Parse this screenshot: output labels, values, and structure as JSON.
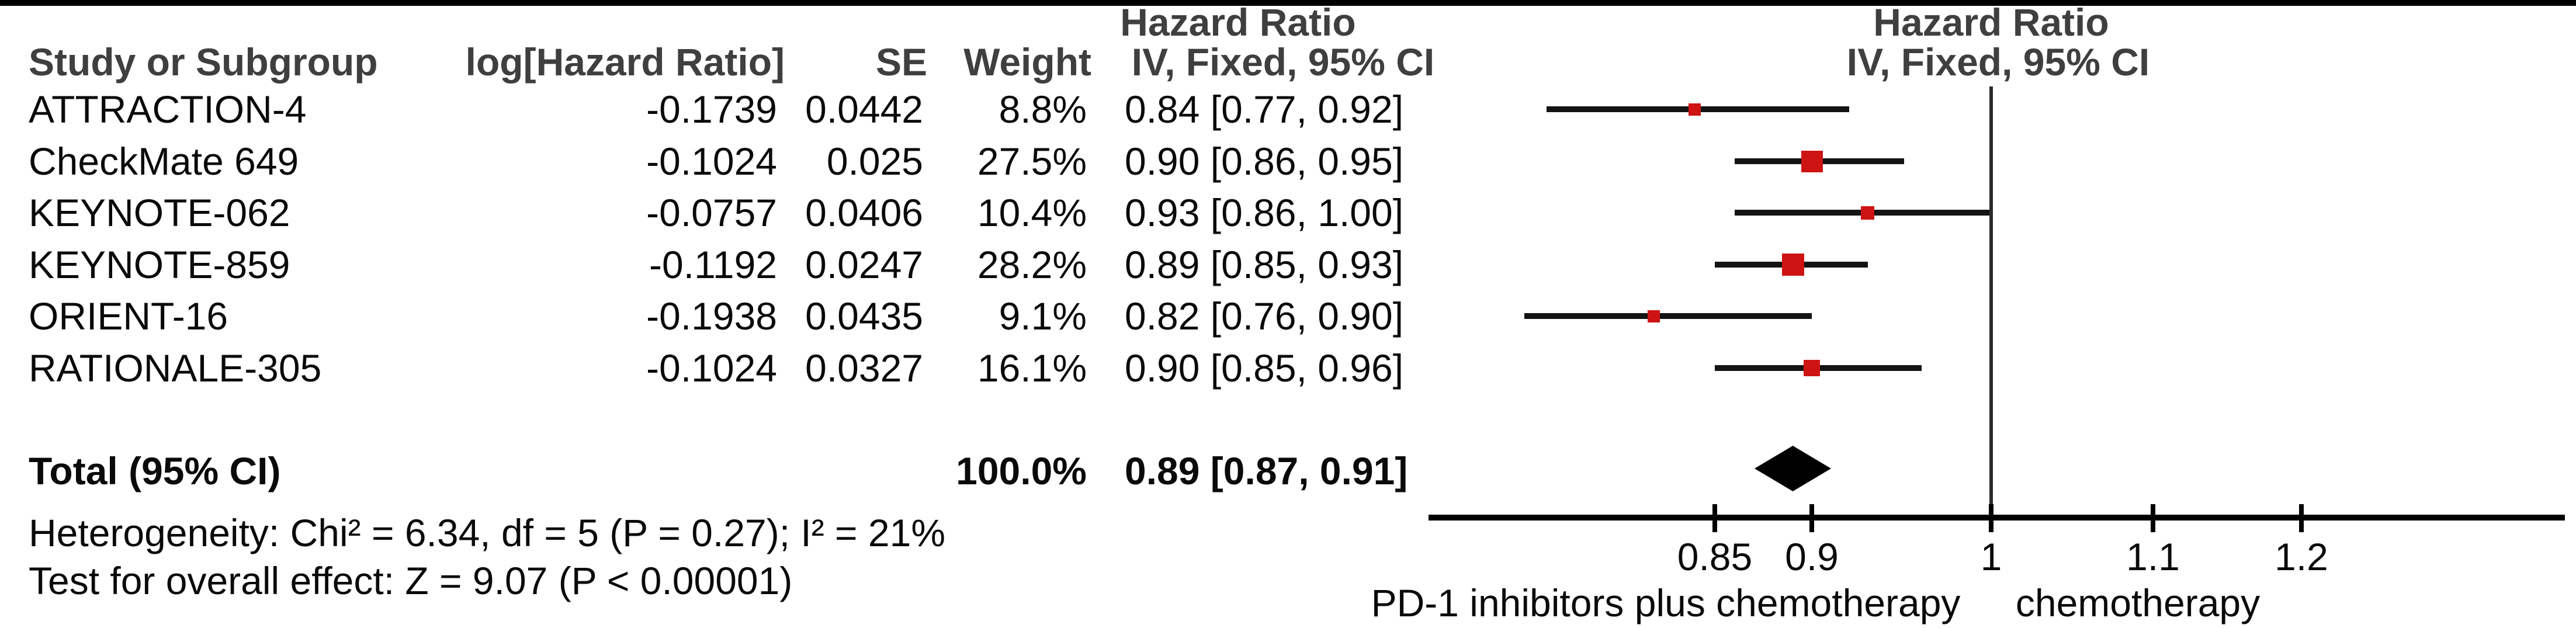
{
  "figure": {
    "headers": {
      "hazard_ratio_left": "Hazard Ratio",
      "hazard_ratio_right": "Hazard Ratio",
      "study": "Study or Subgroup",
      "log_hr": "log[Hazard Ratio]",
      "se": "SE",
      "weight": "Weight",
      "ci_method_left": "IV, Fixed, 95% CI",
      "ci_method_right": "IV, Fixed, 95% CI"
    },
    "total_label": "Total (95% CI)",
    "total_weight": "100.0%",
    "total_estimate": "0.89 [0.87, 0.91]",
    "heterogeneity_text": "Heterogeneity: Chi² = 6.34, df = 5 (P = 0.27); I² = 21%",
    "overall_effect_text": "Test for overall effect: Z = 9.07 (P < 0.00001)",
    "axis_label_left": "PD-1 inhibitors plus chemotherapy",
    "axis_label_right": "chemotherapy",
    "colors": {
      "marker_red": "#cd1412",
      "diamond_black": "#000000",
      "header_text": "#3f3f3f",
      "body_text": "#0a0a0a"
    }
  },
  "chart_data": {
    "type": "scatter",
    "subtype": "forest_plot_meta_analysis",
    "title": "Hazard Ratio",
    "effect_measure": "Hazard Ratio",
    "method": "IV, Fixed, 95% CI",
    "x_scale": "log",
    "x_ticks": [
      0.85,
      0.9,
      1,
      1.1,
      1.2
    ],
    "x_tick_labels": [
      "0.85",
      "0.9",
      "1",
      "1.1",
      "1.2"
    ],
    "studies": [
      {
        "name": "ATTRACTION-4",
        "log_hr_text": "-0.1739",
        "se_text": "0.0442",
        "weight_text": "8.8%",
        "estimate_text": "0.84 [0.77, 0.92]",
        "log_hr": -0.1739,
        "se": 0.0442,
        "weight_pct": 8.8,
        "hr": 0.84,
        "ci_low": 0.77,
        "ci_high": 0.92
      },
      {
        "name": "CheckMate 649",
        "log_hr_text": "-0.1024",
        "se_text": "0.025",
        "weight_text": "27.5%",
        "estimate_text": "0.90 [0.86, 0.95]",
        "log_hr": -0.1024,
        "se": 0.025,
        "weight_pct": 27.5,
        "hr": 0.9,
        "ci_low": 0.86,
        "ci_high": 0.95
      },
      {
        "name": "KEYNOTE-062",
        "log_hr_text": "-0.0757",
        "se_text": "0.0406",
        "weight_text": "10.4%",
        "estimate_text": "0.93 [0.86, 1.00]",
        "log_hr": -0.0757,
        "se": 0.0406,
        "weight_pct": 10.4,
        "hr": 0.93,
        "ci_low": 0.86,
        "ci_high": 1.0
      },
      {
        "name": "KEYNOTE-859",
        "log_hr_text": "-0.1192",
        "se_text": "0.0247",
        "weight_text": "28.2%",
        "estimate_text": "0.89 [0.85, 0.93]",
        "log_hr": -0.1192,
        "se": 0.0247,
        "weight_pct": 28.2,
        "hr": 0.89,
        "ci_low": 0.85,
        "ci_high": 0.93
      },
      {
        "name": "ORIENT-16",
        "log_hr_text": "-0.1938",
        "se_text": "0.0435",
        "weight_text": "9.1%",
        "estimate_text": "0.82 [0.76, 0.90]",
        "log_hr": -0.1938,
        "se": 0.0435,
        "weight_pct": 9.1,
        "hr": 0.82,
        "ci_low": 0.76,
        "ci_high": 0.9
      },
      {
        "name": "RATIONALE-305",
        "log_hr_text": "-0.1024",
        "se_text": "0.0327",
        "weight_text": "16.1%",
        "estimate_text": "0.90 [0.85, 0.96]",
        "log_hr": -0.1024,
        "se": 0.0327,
        "weight_pct": 16.1,
        "hr": 0.9,
        "ci_low": 0.85,
        "ci_high": 0.96
      }
    ],
    "total": {
      "name": "Total (95% CI)",
      "weight_pct": 100.0,
      "weight_text": "100.0%",
      "estimate_text": "0.89 [0.87, 0.91]",
      "hr": 0.89,
      "ci_low": 0.87,
      "ci_high": 0.91
    },
    "heterogeneity": {
      "chi2": 6.34,
      "df": 5,
      "p": 0.27,
      "i2_pct": 21
    },
    "overall_effect": {
      "z": 9.07,
      "p_text": "P < 0.00001"
    },
    "favours_left": "PD-1 inhibitors plus chemotherapy",
    "favours_right": "chemotherapy",
    "legend_position": "none",
    "grid": false
  }
}
